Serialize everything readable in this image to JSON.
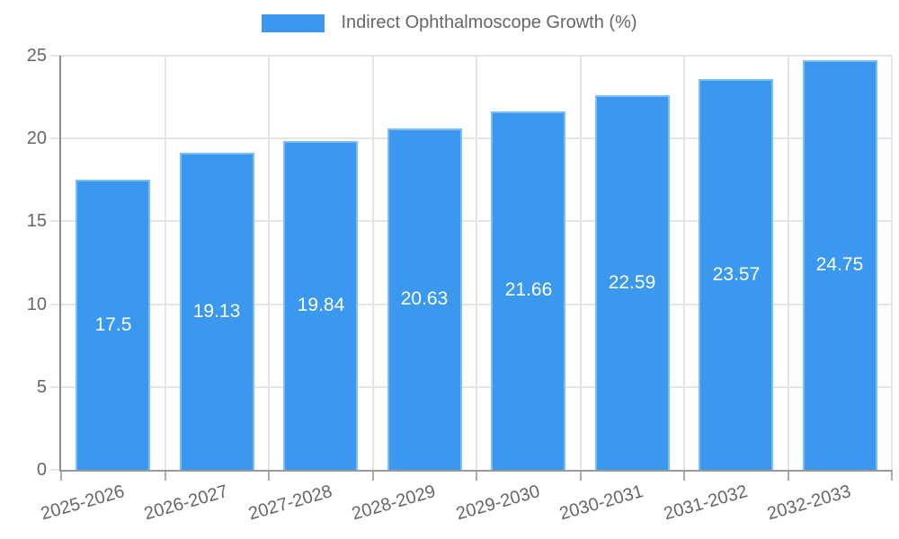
{
  "chart_data": {
    "type": "bar",
    "title": "Indirect Ophthalmoscope Growth (%)",
    "legend_position": "top",
    "grid": true,
    "categories": [
      "2025-2026",
      "2026-2027",
      "2027-2028",
      "2028-2029",
      "2029-2030",
      "2030-2031",
      "2031-2032",
      "2032-2033"
    ],
    "series": [
      {
        "name": "Indirect Ophthalmoscope Growth (%)",
        "values": [
          17.5,
          19.13,
          19.84,
          20.63,
          21.66,
          22.59,
          23.57,
          24.75
        ]
      }
    ],
    "value_labels": [
      "17.5",
      "19.13",
      "19.84",
      "20.63",
      "21.66",
      "22.59",
      "23.57",
      "24.75"
    ],
    "xlabel": "",
    "ylabel": "",
    "ylim": [
      0,
      25
    ],
    "yticks": [
      0,
      5,
      10,
      15,
      20,
      25
    ],
    "ytick_labels": [
      "0",
      "5",
      "10",
      "15",
      "20",
      "25"
    ],
    "colors": {
      "bar": "#3a99ee",
      "bar_border": "#7dbdf5",
      "grid": "#e5e5e5",
      "axis": "#999999",
      "tick_text": "#666666",
      "legend_text": "#666666",
      "value_text": "#ffffff",
      "background": "#ffffff"
    }
  }
}
